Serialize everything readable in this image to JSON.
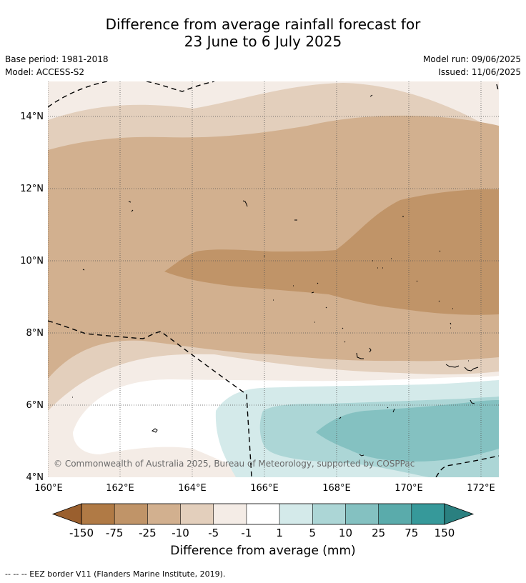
{
  "title_line1": "Difference from average rainfall forecast for",
  "title_line2": "23 June to 6 July 2025",
  "base_period": "Base period: 1981-2018",
  "model": "Model: ACCESS-S2",
  "model_run": "Model run: 09/06/2025",
  "issued": "Issued: 11/06/2025",
  "copyright": "© Commonwealth of Australia 2025, Bureau of Meteorology, supported by COSPPac",
  "map": {
    "lon_range": [
      160,
      172.5
    ],
    "lat_range": [
      4,
      15
    ],
    "x_ticks": [
      "160°E",
      "162°E",
      "164°E",
      "166°E",
      "168°E",
      "170°E",
      "172°E"
    ],
    "y_ticks": [
      "4°N",
      "6°N",
      "8°N",
      "10°N",
      "12°N",
      "14°N"
    ]
  },
  "colorbar": {
    "title": "Difference from average (mm)",
    "tick_labels": [
      "-150",
      "-75",
      "-25",
      "-10",
      "-5",
      "-1",
      "1",
      "5",
      "10",
      "25",
      "75",
      "150"
    ],
    "colors": [
      "#9a5f2e",
      "#b07a45",
      "#c09468",
      "#d2b08f",
      "#e3cfbc",
      "#f4ece6",
      "#ffffff",
      "#d4eaea",
      "#acd6d6",
      "#84c1c1",
      "#5aabab",
      "#36999a",
      "#2a8080"
    ]
  },
  "footnote": "--  --  -- EEZ border V11 (Flanders Marine Institute, 2019)."
}
